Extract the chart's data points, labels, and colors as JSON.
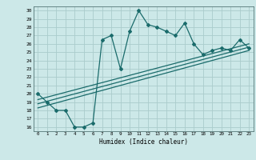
{
  "xlabel": "Humidex (Indice chaleur)",
  "background_color": "#cce8e8",
  "grid_color": "#aacccc",
  "line_color": "#1a6b6b",
  "xlim": [
    -0.5,
    23.5
  ],
  "ylim": [
    15.5,
    30.5
  ],
  "xticks": [
    0,
    1,
    2,
    3,
    4,
    5,
    6,
    7,
    8,
    9,
    10,
    11,
    12,
    13,
    14,
    15,
    16,
    17,
    18,
    19,
    20,
    21,
    22,
    23
  ],
  "yticks": [
    16,
    17,
    18,
    19,
    20,
    21,
    22,
    23,
    24,
    25,
    26,
    27,
    28,
    29,
    30
  ],
  "x_data": [
    0,
    1,
    2,
    3,
    4,
    5,
    6,
    7,
    8,
    9,
    10,
    11,
    12,
    13,
    14,
    15,
    16,
    17,
    18,
    19,
    20,
    21,
    22,
    23
  ],
  "y_data": [
    20,
    19,
    18,
    18,
    16,
    16,
    16.5,
    26.5,
    27,
    23.0,
    27.5,
    30,
    28.3,
    28,
    27.5,
    27,
    28.5,
    26,
    24.7,
    25.2,
    25.5,
    25.2,
    26.5,
    25.5
  ],
  "reg_lines": [
    {
      "x0": 0,
      "y0": 18.3,
      "x1": 23,
      "y1": 25.2
    },
    {
      "x0": 0,
      "y0": 18.8,
      "x1": 23,
      "y1": 25.6
    },
    {
      "x0": 0,
      "y0": 19.3,
      "x1": 23,
      "y1": 26.0
    }
  ]
}
